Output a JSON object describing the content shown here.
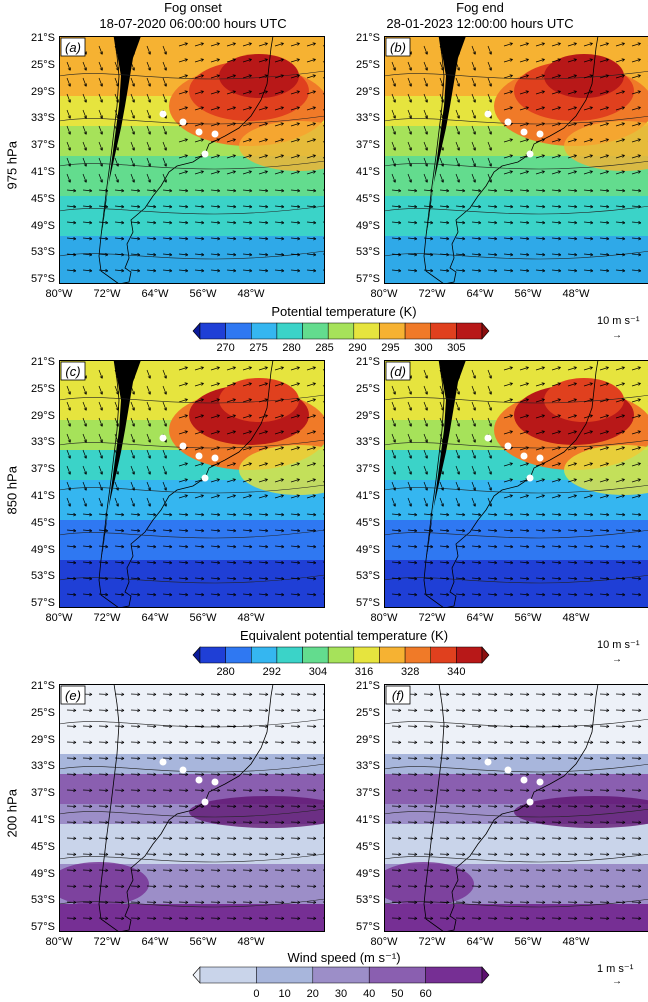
{
  "columns": [
    {
      "label": "Fog onset",
      "date": "18-07-2020 06:00:00 hours UTC"
    },
    {
      "label": "Fog end",
      "date": "28-01-2023 12:00:00 hours UTC"
    }
  ],
  "rows": [
    {
      "level": "975 hPa",
      "panels": [
        "(a)",
        "(b)"
      ],
      "variable": "Potential temperature (K)",
      "ticks": [
        "270",
        "275",
        "280",
        "285",
        "290",
        "295",
        "300",
        "305"
      ],
      "colors": [
        "#0a1a9a",
        "#1f3fd6",
        "#2f78f2",
        "#35b6f0",
        "#3bd3c8",
        "#63dc8e",
        "#a6e25a",
        "#e6e43e",
        "#f6b232",
        "#f07a28",
        "#e0401e",
        "#b81818",
        "#8a0f0f"
      ],
      "wind_scale": "10 m s⁻¹"
    },
    {
      "level": "850 hPa",
      "panels": [
        "(c)",
        "(d)"
      ],
      "variable": "Equivalent potential temperature (K)",
      "ticks": [
        "280",
        "292",
        "304",
        "316",
        "328",
        "340"
      ],
      "colors": [
        "#0a1a9a",
        "#1f3fd6",
        "#2f78f2",
        "#35b6f0",
        "#3bd3c8",
        "#63dc8e",
        "#a6e25a",
        "#e6e43e",
        "#f6b232",
        "#f07a28",
        "#e0401e",
        "#b81818",
        "#8a0f0f"
      ],
      "wind_scale": "10 m s⁻¹"
    },
    {
      "level": "200 hPa",
      "panels": [
        "(e)",
        "(f)"
      ],
      "variable": "Wind speed (m s⁻¹)",
      "ticks": [
        "0",
        "10",
        "20",
        "30",
        "40",
        "50",
        "60"
      ],
      "colors": [
        "#edf1f8",
        "#c9d4ea",
        "#a8b6dc",
        "#9c8ec8",
        "#8a5fb0",
        "#762f94",
        "#5c0f6e"
      ],
      "wind_scale": "1 m s⁻¹"
    }
  ],
  "lat_ticks": [
    "21°S",
    "25°S",
    "29°S",
    "33°S",
    "37°S",
    "41°S",
    "45°S",
    "49°S",
    "53°S",
    "57°S"
  ],
  "lon_ticks": [
    "80°W",
    "72°W",
    "64°W",
    "56°W",
    "48°W"
  ]
}
